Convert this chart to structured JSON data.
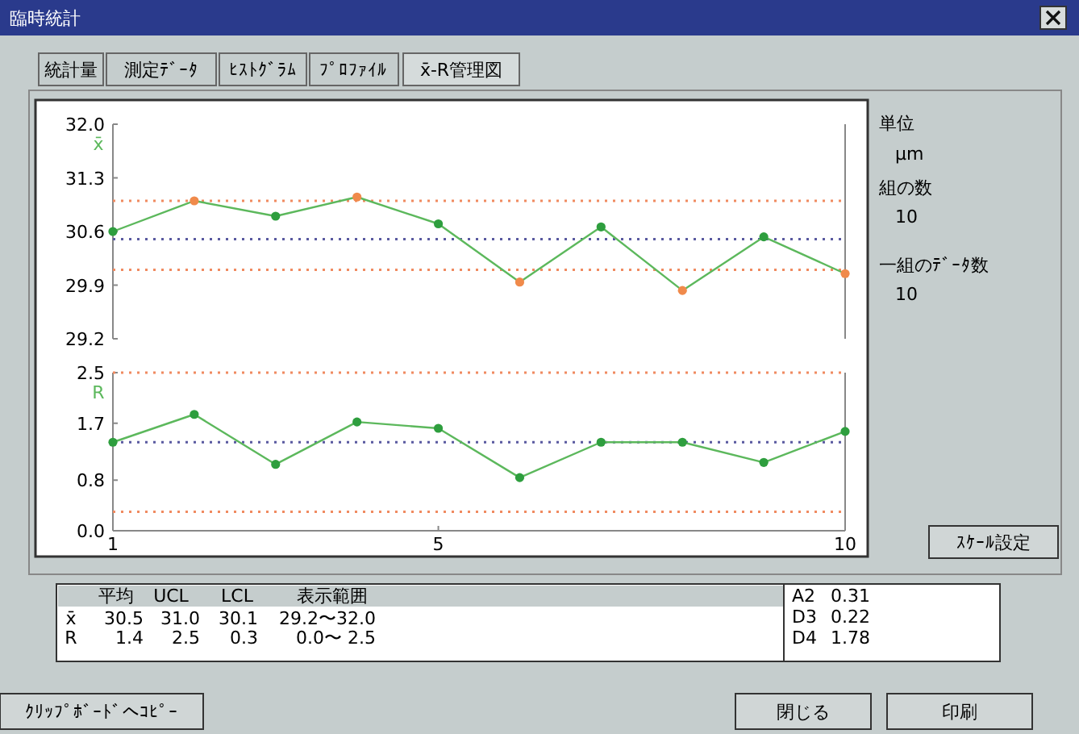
{
  "chart_data": [
    {
      "type": "line",
      "ylabel": "x̄",
      "x": [
        1,
        2,
        3,
        4,
        5,
        6,
        7,
        8,
        9,
        10
      ],
      "xlim": [
        1,
        10
      ],
      "ylim": [
        29.2,
        32.0
      ],
      "yticks": [
        29.2,
        29.9,
        30.6,
        31.3,
        {
          "value": 32,
          "label": "32.0"
        }
      ],
      "tick_labels": "y",
      "marker": "circle",
      "series": [
        {
          "color": "#5cb85c",
          "colors": [
            "#2e9e3e",
            "#f08a4b",
            "#2e9e3e",
            "#f08a4b",
            "#2e9e3e",
            "#f08a4b",
            "#2e9e3e",
            "#f08a4b",
            "#2e9e3e",
            "#f08a4b"
          ],
          "values": [
            30.6,
            31.0,
            30.8,
            31.05,
            30.7,
            29.94,
            30.66,
            29.83,
            30.53,
            30.05
          ]
        }
      ],
      "ref_lines": [
        {
          "axis": "y",
          "value": 31.0,
          "color": "#f08a60",
          "line_style": "dotted"
        },
        {
          "axis": "y",
          "value": 30.5,
          "color": "#5a5aa0",
          "line_style": "dotted"
        },
        {
          "axis": "y",
          "value": 30.1,
          "color": "#f08a60",
          "line_style": "dotted"
        }
      ]
    },
    {
      "type": "line",
      "ylabel": "R",
      "x": [
        1,
        2,
        3,
        4,
        5,
        6,
        7,
        8,
        9,
        10
      ],
      "xlim": [
        1,
        10
      ],
      "xticks": [
        1,
        5,
        10
      ],
      "ylim": [
        0,
        2.5
      ],
      "yticks": [
        {
          "value": 0,
          "label": "0.0"
        },
        0.8,
        1.7,
        2.5
      ],
      "marker": "circle",
      "series": [
        {
          "color": "#5cb85c",
          "colors": [
            "#2e9e3e",
            "#2e9e3e",
            "#2e9e3e",
            "#2e9e3e",
            "#2e9e3e",
            "#2e9e3e",
            "#2e9e3e",
            "#2e9e3e",
            "#2e9e3e",
            "#2e9e3e"
          ],
          "values": [
            1.4,
            1.84,
            1.05,
            1.72,
            1.62,
            0.84,
            1.4,
            1.4,
            1.08,
            1.57
          ]
        }
      ],
      "ref_lines": [
        {
          "axis": "y",
          "value": 2.5,
          "color": "#f08a60",
          "line_style": "dotted"
        },
        {
          "axis": "y",
          "value": 1.4,
          "color": "#5a5aa0",
          "line_style": "dotted"
        },
        {
          "axis": "y",
          "value": 0.3,
          "color": "#f08a60",
          "line_style": "dotted"
        }
      ]
    },
    {
      "type": "other",
      "title": "臨時統計",
      "annotations": [
        "統計量",
        "測定ﾃﾞｰﾀ",
        "ﾋｽﾄｸﾞﾗﾑ",
        "ﾌﾟﾛﾌｧｲﾙ",
        "x̄-R管理図",
        "単位",
        "μm",
        "組の数",
        "10",
        "一組のﾃﾞｰﾀ数",
        "10",
        "ｽｹｰﾙ設定",
        "平均",
        "UCL",
        "LCL",
        "表示範囲",
        "x̄",
        "30.5",
        "31.0",
        "30.1",
        "29.2〜32.0",
        "R",
        "1.4",
        "2.5",
        "0.3",
        "0.0〜 2.5",
        "A2",
        "0.31",
        "D3",
        "0.22",
        "D4",
        "1.78",
        "ｸﾘｯﾌﾟﾎﾞｰﾄﾞへｺﾋﾟｰ",
        "閉じる",
        "印刷"
      ]
    }
  ]
}
